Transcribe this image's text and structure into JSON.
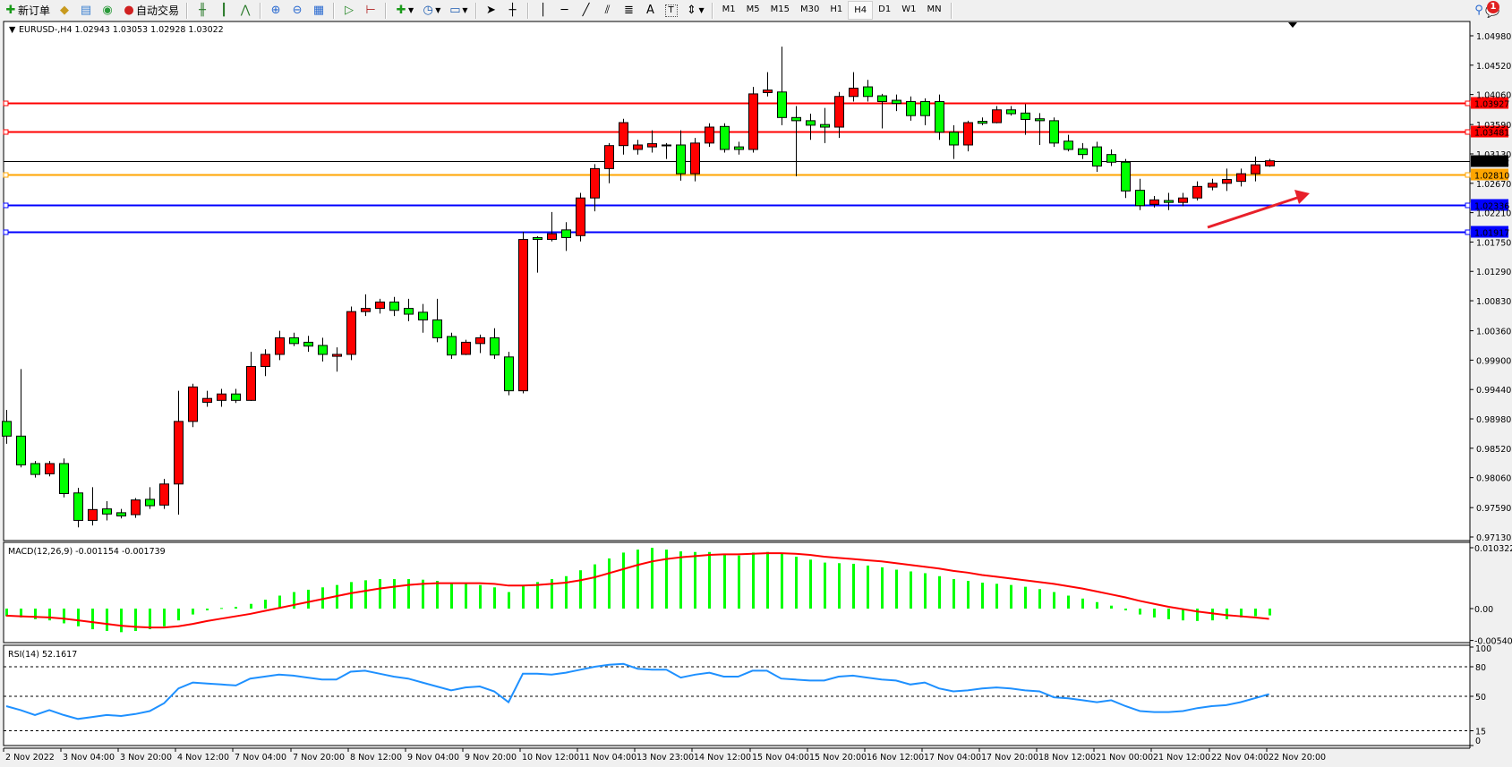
{
  "toolbar": {
    "new_order_label": "新订单",
    "auto_trading_label": "自动交易",
    "timeframes": [
      "M1",
      "M5",
      "M15",
      "M30",
      "H1",
      "H4",
      "D1",
      "W1",
      "MN"
    ],
    "active_timeframe": "H4",
    "notification_count": "1",
    "icons": [
      "new-order-icon",
      "strategy-tester-icon",
      "market-watch-icon",
      "signals-icon",
      "auto-trading-icon",
      "bar-chart-icon",
      "candlestick-icon",
      "line-chart-icon",
      "zoom-in-icon",
      "zoom-out-icon",
      "tile-windows-icon",
      "auto-scroll-icon",
      "chart-shift-icon",
      "indicators-icon",
      "periods-icon",
      "templates-icon",
      "cursor-icon",
      "crosshair-icon",
      "vertical-line-icon",
      "horizontal-line-icon",
      "trendline-icon",
      "equidistant-channel-icon",
      "fibonacci-icon",
      "text-icon",
      "text-label-icon",
      "arrows-icon",
      "search-icon",
      "notification-icon"
    ]
  },
  "chart_header": "EURUSD-,H4  1.02943 1.03053 1.02928 1.03022",
  "macd_header": "MACD(12,26,9) -0.001154 -0.001739",
  "rsi_header": "RSI(14) 52.1617",
  "colors": {
    "bull": "#ff0000",
    "bear": "#00ff00",
    "macd_hist": "#00ff00",
    "macd_signal": "#ff0000",
    "rsi": "#1e90ff",
    "resistance": "#ff0000",
    "pivot": "#ffa500",
    "support": "#0000ff",
    "arrow": "#e8202a"
  },
  "chart_data": [
    {
      "type": "candlestick",
      "symbol": "EURUSD-",
      "timeframe": "H4",
      "ylim": [
        0.9707,
        1.0518
      ],
      "yticks": [
        "1.04980",
        "1.04520",
        "1.04060",
        "1.03590",
        "1.03130",
        "1.02670",
        "1.02210",
        "1.01750",
        "1.01290",
        "1.00830",
        "1.00360",
        "0.99900",
        "0.99440",
        "0.98980",
        "0.98520",
        "0.98060",
        "0.97590",
        "0.97130"
      ],
      "xtick_labels": [
        "2 Nov 2022",
        "3 Nov 04:00",
        "3 Nov 20:00",
        "4 Nov 12:00",
        "7 Nov 04:00",
        "7 Nov 20:00",
        "8 Nov 12:00",
        "9 Nov 04:00",
        "9 Nov 20:00",
        "10 Nov 12:00",
        "11 Nov 04:00",
        "13 Nov 23:00",
        "14 Nov 12:00",
        "15 Nov 04:00",
        "15 Nov 20:00",
        "16 Nov 12:00",
        "17 Nov 04:00",
        "17 Nov 20:00",
        "18 Nov 12:00",
        "21 Nov 00:00",
        "21 Nov 12:00",
        "22 Nov 04:00",
        "22 Nov 20:00"
      ],
      "xtick_every_n_bars": 4,
      "current_price": "1.03022",
      "horizontal_lines": [
        {
          "price": "1.03927",
          "role": "resistance"
        },
        {
          "price": "1.03481",
          "role": "resistance"
        },
        {
          "price": "1.02810",
          "role": "pivot"
        },
        {
          "price": "1.02336",
          "role": "support"
        },
        {
          "price": "1.01917",
          "role": "support"
        }
      ],
      "annotation": "red upward arrow",
      "ohlc": [
        [
          0.9894,
          0.9912,
          0.9859,
          0.9871
        ],
        [
          0.9871,
          0.9976,
          0.9822,
          0.9826
        ],
        [
          0.9828,
          0.9832,
          0.9806,
          0.9811
        ],
        [
          0.9812,
          0.9832,
          0.9808,
          0.9828
        ],
        [
          0.9828,
          0.9836,
          0.9775,
          0.9781
        ],
        [
          0.9782,
          0.979,
          0.9728,
          0.9739
        ],
        [
          0.9739,
          0.9791,
          0.9731,
          0.9756
        ],
        [
          0.9757,
          0.9769,
          0.9739,
          0.9749
        ],
        [
          0.9751,
          0.9757,
          0.9742,
          0.9746
        ],
        [
          0.9748,
          0.9774,
          0.9743,
          0.9771
        ],
        [
          0.9772,
          0.9791,
          0.9757,
          0.9762
        ],
        [
          0.9763,
          0.9804,
          0.9757,
          0.9796
        ],
        [
          0.9796,
          0.9942,
          0.9748,
          0.9894
        ],
        [
          0.9894,
          0.9953,
          0.9885,
          0.9948
        ],
        [
          0.9924,
          0.9942,
          0.9917,
          0.993
        ],
        [
          0.9927,
          0.9945,
          0.9917,
          0.9937
        ],
        [
          0.9937,
          0.9945,
          0.9923,
          0.9927
        ],
        [
          0.9927,
          1.0003,
          0.9926,
          0.998
        ],
        [
          0.998,
          1.0007,
          0.9965,
          0.9999
        ],
        [
          0.9999,
          1.0036,
          0.999,
          1.0025
        ],
        [
          1.0025,
          1.0033,
          1.0012,
          1.0016
        ],
        [
          1.0018,
          1.0028,
          1.0003,
          1.0012
        ],
        [
          1.0013,
          1.0025,
          0.9988,
          0.9999
        ],
        [
          0.9996,
          1.001,
          0.9972,
          0.9999
        ],
        [
          0.9999,
          1.0074,
          0.999,
          1.0066
        ],
        [
          1.0066,
          1.0093,
          1.0059,
          1.0071
        ],
        [
          1.0071,
          1.0086,
          1.0063,
          1.0081
        ],
        [
          1.0081,
          1.0089,
          1.0059,
          1.0068
        ],
        [
          1.0071,
          1.0086,
          1.0051,
          1.0062
        ],
        [
          1.0065,
          1.0078,
          1.0033,
          1.0053
        ],
        [
          1.0053,
          1.0086,
          1.0018,
          1.0025
        ],
        [
          1.0027,
          1.0033,
          0.9992,
          0.9998
        ],
        [
          0.9999,
          1.0022,
          0.9998,
          1.0018
        ],
        [
          1.0016,
          1.003,
          1.0001,
          1.0025
        ],
        [
          1.0025,
          1.004,
          0.9992,
          0.9998
        ],
        [
          0.9995,
          1.0003,
          0.9935,
          0.9942
        ],
        [
          0.9942,
          1.0191,
          0.9938,
          1.0179
        ],
        [
          1.0182,
          1.0184,
          1.0127,
          1.0179
        ],
        [
          1.0179,
          1.0222,
          1.0176,
          1.0188
        ],
        [
          1.0194,
          1.0206,
          1.0161,
          1.0182
        ],
        [
          1.0185,
          1.0252,
          1.0176,
          1.0244
        ],
        [
          1.0244,
          1.0297,
          1.0223,
          1.029
        ],
        [
          1.029,
          1.033,
          1.0267,
          1.0326
        ],
        [
          1.0326,
          1.0368,
          1.0312,
          1.0362
        ],
        [
          1.032,
          1.0335,
          1.0312,
          1.0327
        ],
        [
          1.0324,
          1.035,
          1.0315,
          1.0329
        ],
        [
          1.0327,
          1.033,
          1.0305,
          1.0326
        ],
        [
          1.0327,
          1.035,
          1.0271,
          1.0282
        ],
        [
          1.0282,
          1.0338,
          1.027,
          1.033
        ],
        [
          1.033,
          1.0361,
          1.0324,
          1.0355
        ],
        [
          1.0356,
          1.0361,
          1.0315,
          1.032
        ],
        [
          1.0324,
          1.0332,
          1.0312,
          1.032
        ],
        [
          1.032,
          1.0418,
          1.0315,
          1.0407
        ],
        [
          1.0409,
          1.0441,
          1.0403,
          1.0413
        ],
        [
          1.041,
          1.0481,
          1.0358,
          1.037
        ],
        [
          1.037,
          1.0388,
          1.0278,
          1.0365
        ],
        [
          1.0365,
          1.0376,
          1.0335,
          1.0358
        ],
        [
          1.0359,
          1.0385,
          1.033,
          1.0355
        ],
        [
          1.0355,
          1.041,
          1.0338,
          1.0403
        ],
        [
          1.0403,
          1.0441,
          1.0395,
          1.0416
        ],
        [
          1.0418,
          1.0429,
          1.0395,
          1.0403
        ],
        [
          1.0404,
          1.0407,
          1.0353,
          1.0395
        ],
        [
          1.0397,
          1.0406,
          1.038,
          1.0392
        ],
        [
          1.0395,
          1.0403,
          1.0365,
          1.0373
        ],
        [
          1.0395,
          1.04,
          1.0358,
          1.0373
        ],
        [
          1.0395,
          1.0406,
          1.0335,
          1.0347
        ],
        [
          1.0347,
          1.0358,
          1.0305,
          1.0327
        ],
        [
          1.0327,
          1.0365,
          1.0317,
          1.0362
        ],
        [
          1.0364,
          1.037,
          1.0358,
          1.0361
        ],
        [
          1.0362,
          1.0388,
          1.0361,
          1.0382
        ],
        [
          1.0382,
          1.0388,
          1.0373,
          1.0376
        ],
        [
          1.0377,
          1.0391,
          1.0343,
          1.0367
        ],
        [
          1.0368,
          1.0377,
          1.0327,
          1.0365
        ],
        [
          1.0365,
          1.037,
          1.0324,
          1.033
        ],
        [
          1.0333,
          1.0343,
          1.0317,
          1.032
        ],
        [
          1.0321,
          1.033,
          1.0305,
          1.0312
        ],
        [
          1.0324,
          1.0332,
          1.0285,
          1.0294
        ],
        [
          1.0312,
          1.032,
          1.0294,
          1.03
        ],
        [
          1.03,
          1.0305,
          1.0244,
          1.0255
        ],
        [
          1.0256,
          1.0274,
          1.0225,
          1.0232
        ],
        [
          1.0234,
          1.0247,
          1.0229,
          1.0241
        ],
        [
          1.024,
          1.0252,
          1.0225,
          1.0237
        ],
        [
          1.0237,
          1.0252,
          1.0231,
          1.0244
        ],
        [
          1.0244,
          1.027,
          1.024,
          1.0262
        ],
        [
          1.0261,
          1.0274,
          1.0256,
          1.0267
        ],
        [
          1.0267,
          1.029,
          1.0255,
          1.0273
        ],
        [
          1.027,
          1.029,
          1.0262,
          1.0282
        ],
        [
          1.0282,
          1.0309,
          1.027,
          1.0296
        ],
        [
          1.02943,
          1.03053,
          1.02928,
          1.03022
        ]
      ]
    },
    {
      "type": "bar+line",
      "title": "MACD(12,26,9)",
      "ylim": [
        -0.005408,
        0.010322
      ],
      "yticks": [
        "0.010322",
        "0.00",
        "-0.005408"
      ],
      "macd": [
        -0.0013,
        -0.0015,
        -0.0018,
        -0.002,
        -0.0025,
        -0.003,
        -0.0035,
        -0.0038,
        -0.004,
        -0.0038,
        -0.0035,
        -0.003,
        -0.002,
        -0.001,
        -0.0003,
        0.0001,
        0.0003,
        0.0008,
        0.0015,
        0.0022,
        0.0028,
        0.0032,
        0.0036,
        0.004,
        0.0045,
        0.0048,
        0.005,
        0.005,
        0.005,
        0.0049,
        0.0047,
        0.0044,
        0.0042,
        0.004,
        0.0036,
        0.0028,
        0.004,
        0.0045,
        0.005,
        0.0055,
        0.0065,
        0.0075,
        0.0085,
        0.0095,
        0.01,
        0.0103,
        0.01,
        0.0097,
        0.0096,
        0.0096,
        0.0093,
        0.009,
        0.0095,
        0.0096,
        0.0093,
        0.0088,
        0.0083,
        0.0078,
        0.0077,
        0.0076,
        0.0073,
        0.007,
        0.0066,
        0.0063,
        0.006,
        0.0055,
        0.005,
        0.0047,
        0.0044,
        0.0042,
        0.004,
        0.0037,
        0.0033,
        0.0028,
        0.0022,
        0.0017,
        0.0011,
        0.0005,
        -0.0003,
        -0.001,
        -0.0015,
        -0.0018,
        -0.002,
        -0.0021,
        -0.002,
        -0.0018,
        -0.0015,
        -0.0013,
        -0.001154
      ],
      "signal": [
        -0.0012,
        -0.0013,
        -0.0014,
        -0.0015,
        -0.0017,
        -0.002,
        -0.0023,
        -0.0026,
        -0.0029,
        -0.0031,
        -0.0032,
        -0.0032,
        -0.003,
        -0.0026,
        -0.0021,
        -0.0017,
        -0.0013,
        -0.0009,
        -0.0004,
        0.0001,
        0.0006,
        0.0011,
        0.0016,
        0.0021,
        0.0026,
        0.003,
        0.0034,
        0.0037,
        0.004,
        0.0042,
        0.0043,
        0.0043,
        0.0043,
        0.0043,
        0.0042,
        0.0039,
        0.0039,
        0.004,
        0.0042,
        0.0044,
        0.0048,
        0.0053,
        0.006,
        0.0067,
        0.0074,
        0.008,
        0.0084,
        0.0087,
        0.0089,
        0.0091,
        0.0092,
        0.0092,
        0.0093,
        0.0094,
        0.0094,
        0.0093,
        0.0091,
        0.0088,
        0.0086,
        0.0084,
        0.0082,
        0.008,
        0.0077,
        0.0074,
        0.0071,
        0.0068,
        0.0064,
        0.0061,
        0.0057,
        0.0054,
        0.0051,
        0.0048,
        0.0045,
        0.0042,
        0.0038,
        0.0034,
        0.0029,
        0.0024,
        0.0019,
        0.0013,
        0.0008,
        0.0003,
        -0.0001,
        -0.0005,
        -0.0008,
        -0.0011,
        -0.0013,
        -0.0015,
        -0.001739
      ]
    },
    {
      "type": "line",
      "title": "RSI(14)",
      "ylim": [
        0,
        100
      ],
      "yticks": [
        "100",
        "80",
        "50",
        "15",
        "0"
      ],
      "levels": [
        80,
        50,
        15
      ],
      "values": [
        40,
        36,
        31,
        36,
        31,
        27,
        29,
        31,
        30,
        32,
        35,
        43,
        58,
        64,
        63,
        62,
        61,
        68,
        70,
        72,
        71,
        69,
        67,
        67,
        75,
        76,
        73,
        70,
        68,
        64,
        60,
        56,
        59,
        60,
        55,
        44,
        73,
        73,
        72,
        74,
        77,
        80,
        82,
        83,
        78,
        77,
        77,
        69,
        72,
        74,
        70,
        70,
        76,
        76,
        68,
        67,
        66,
        66,
        70,
        71,
        69,
        67,
        66,
        62,
        64,
        58,
        55,
        56,
        58,
        59,
        58,
        56,
        55,
        49,
        48,
        46,
        44,
        46,
        40,
        35,
        34,
        34,
        35,
        38,
        40,
        41,
        44,
        48,
        52.1617
      ]
    }
  ]
}
